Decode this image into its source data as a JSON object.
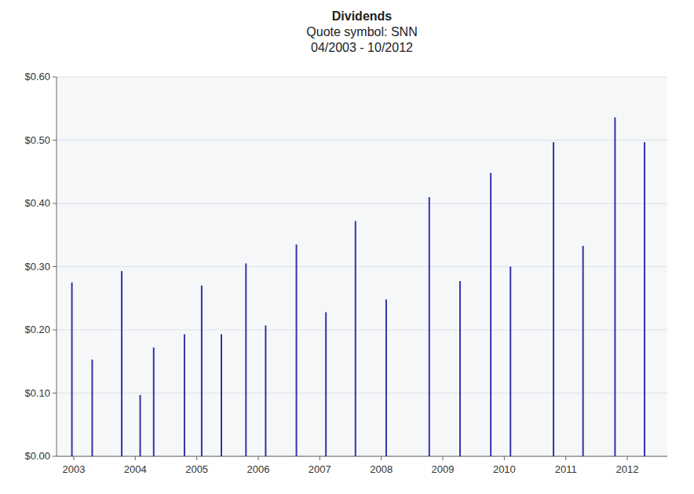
{
  "chart_data": {
    "type": "stem",
    "title": "Dividends\nQuote symbol: SNN\n04/2003 - 10/2012",
    "x": [
      2002.97,
      2003.3,
      2003.78,
      2004.08,
      2004.3,
      2004.8,
      2005.08,
      2005.4,
      2005.8,
      2006.12,
      2006.62,
      2007.1,
      2007.58,
      2008.08,
      2008.78,
      2009.28,
      2009.78,
      2010.1,
      2010.8,
      2011.28,
      2011.8,
      2012.28
    ],
    "values": [
      0.275,
      0.153,
      0.293,
      0.097,
      0.172,
      0.193,
      0.27,
      0.193,
      0.305,
      0.207,
      0.335,
      0.228,
      0.372,
      0.248,
      0.41,
      0.277,
      0.448,
      0.3,
      0.497,
      0.333,
      0.536,
      0.497
    ],
    "color": "#3333aa",
    "xlim": [
      2002.72,
      2012.65
    ],
    "ylim": [
      0.0,
      0.6
    ],
    "xticks": [
      2003,
      2004,
      2005,
      2006,
      2007,
      2008,
      2009,
      2010,
      2011,
      2012
    ],
    "yticks": [
      {
        "value": 0.0,
        "label": "$0.00"
      },
      {
        "value": 0.1,
        "label": "$0.10"
      },
      {
        "value": 0.2,
        "label": "$0.20"
      },
      {
        "value": 0.3,
        "label": "$0.30"
      },
      {
        "value": 0.4,
        "label": "$0.40"
      },
      {
        "value": 0.5,
        "label": "$0.50"
      },
      {
        "value": 0.6,
        "label": "$0.60"
      }
    ],
    "grid": true
  }
}
